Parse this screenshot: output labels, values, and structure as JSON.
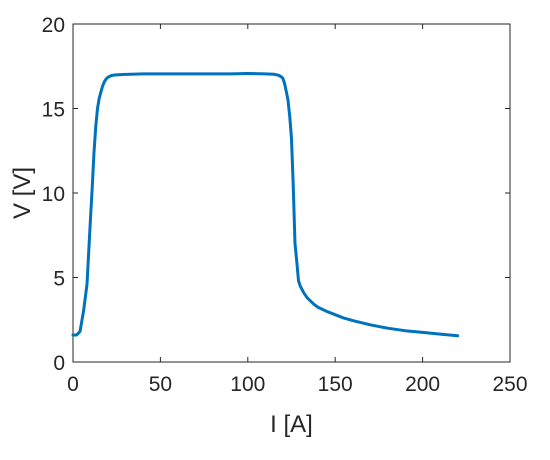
{
  "chart_data": {
    "type": "line",
    "title": "",
    "xlabel": "I [A]",
    "ylabel": "V [V]",
    "xlim": [
      0,
      250
    ],
    "ylim": [
      0,
      20
    ],
    "xticks": [
      0,
      50,
      100,
      150,
      200,
      250
    ],
    "yticks": [
      0,
      5,
      10,
      15,
      20
    ],
    "grid": false,
    "box": true,
    "series": [
      {
        "color": "#0072BD",
        "x": [
          0,
          2,
          4,
          6,
          8,
          9,
          10,
          11,
          12,
          13,
          14,
          15,
          16,
          17,
          18,
          19,
          20,
          21,
          22,
          24,
          26,
          30,
          40,
          50,
          60,
          70,
          80,
          90,
          100,
          110,
          115,
          118,
          120,
          121,
          122,
          123,
          124,
          125,
          126,
          127,
          128,
          129,
          130,
          132,
          134,
          136,
          138,
          140,
          145,
          150,
          155,
          160,
          170,
          180,
          190,
          200,
          210,
          220
        ],
        "y": [
          1.6,
          1.6,
          1.8,
          3.0,
          4.6,
          6.5,
          8.5,
          10.3,
          12.4,
          13.9,
          15.0,
          15.6,
          16.0,
          16.35,
          16.6,
          16.75,
          16.85,
          16.9,
          16.95,
          16.98,
          17.0,
          17.02,
          17.05,
          17.05,
          17.05,
          17.05,
          17.05,
          17.05,
          17.07,
          17.05,
          17.03,
          16.95,
          16.8,
          16.5,
          16.0,
          15.5,
          14.5,
          13.2,
          10.5,
          7.0,
          6.0,
          4.8,
          4.5,
          4.1,
          3.8,
          3.6,
          3.4,
          3.25,
          3.0,
          2.8,
          2.6,
          2.45,
          2.2,
          2.0,
          1.85,
          1.75,
          1.65,
          1.55
        ]
      }
    ]
  }
}
